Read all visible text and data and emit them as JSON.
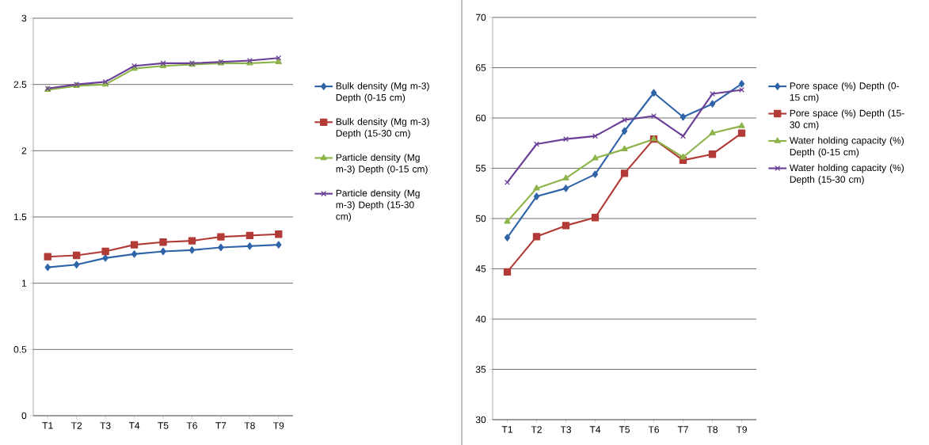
{
  "chart_data": [
    {
      "type": "line",
      "categories": [
        "T1",
        "T2",
        "T3",
        "T4",
        "T5",
        "T6",
        "T7",
        "T8",
        "T9"
      ],
      "ylim": [
        0,
        3
      ],
      "yticks": [
        0,
        0.5,
        1,
        1.5,
        2,
        2.5,
        3
      ],
      "grid": "y",
      "legend": "right",
      "series": [
        {
          "name": "Bulk density (Mg m-3) Depth (0-15 cm)",
          "color": "#2f64a8",
          "marker": "diamond",
          "values": [
            1.12,
            1.14,
            1.19,
            1.22,
            1.24,
            1.25,
            1.27,
            1.28,
            1.29
          ]
        },
        {
          "name": "Bulk density (Mg m-3) Depth (15-30 cm)",
          "color": "#b23b37",
          "marker": "square",
          "values": [
            1.2,
            1.21,
            1.24,
            1.29,
            1.31,
            1.32,
            1.35,
            1.36,
            1.37
          ]
        },
        {
          "name": "Particle density (Mg m-3) Depth (0-15 cm)",
          "color": "#8cb44a",
          "marker": "triangle",
          "values": [
            2.46,
            2.49,
            2.5,
            2.62,
            2.64,
            2.65,
            2.66,
            2.66,
            2.67
          ]
        },
        {
          "name": "Particle density (Mg m-3) Depth (15-30 cm)",
          "color": "#6b3f98",
          "marker": "cross",
          "values": [
            2.47,
            2.5,
            2.52,
            2.64,
            2.66,
            2.66,
            2.67,
            2.68,
            2.7
          ]
        }
      ]
    },
    {
      "type": "line",
      "categories": [
        "T1",
        "T2",
        "T3",
        "T4",
        "T5",
        "T6",
        "T7",
        "T8",
        "T9"
      ],
      "ylim": [
        30,
        70
      ],
      "yticks": [
        30,
        35,
        40,
        45,
        50,
        55,
        60,
        65,
        70
      ],
      "grid": "y",
      "legend": "right",
      "series": [
        {
          "name": "Pore space (%) Depth (0-15 cm)",
          "color": "#2f64a8",
          "marker": "diamond",
          "values": [
            48.1,
            52.2,
            53.0,
            54.4,
            58.7,
            62.5,
            60.1,
            61.4,
            63.4
          ]
        },
        {
          "name": "Pore space (%) Depth (15-30 cm)",
          "color": "#b23b37",
          "marker": "square",
          "values": [
            44.7,
            48.2,
            49.3,
            50.1,
            54.5,
            57.9,
            55.8,
            56.4,
            58.5
          ]
        },
        {
          "name": "Water holding capacity (%) Depth (0-15 cm)",
          "color": "#8cb44a",
          "marker": "triangle",
          "values": [
            49.7,
            53.0,
            54.0,
            56.0,
            56.9,
            57.9,
            56.1,
            58.5,
            59.2
          ]
        },
        {
          "name": "Water holding capacity (%) Depth (15-30 cm)",
          "color": "#6b3f98",
          "marker": "cross",
          "values": [
            53.6,
            57.4,
            57.9,
            58.2,
            59.8,
            60.2,
            58.2,
            62.4,
            62.8
          ]
        }
      ]
    }
  ]
}
